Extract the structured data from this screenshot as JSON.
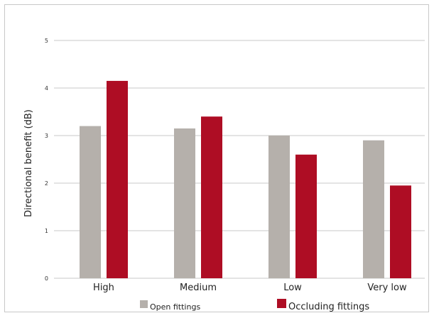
{
  "chart_data": {
    "type": "bar",
    "title": "",
    "xlabel": "",
    "ylabel": "Directional benefit (dB)",
    "categories": [
      "High",
      "Medium",
      "Low",
      "Very low"
    ],
    "series": [
      {
        "name": "Open fittings",
        "color": "#b5b0ab",
        "values": [
          3.2,
          3.15,
          3.0,
          2.9
        ]
      },
      {
        "name": "Occluding fittings",
        "color": "#ae0d24",
        "values": [
          4.15,
          3.4,
          2.6,
          1.95
        ]
      }
    ],
    "ylim": [
      0,
      5
    ],
    "yticks": [
      0,
      1,
      2,
      3,
      4,
      5
    ],
    "grid": true,
    "legend_position": "bottom"
  }
}
